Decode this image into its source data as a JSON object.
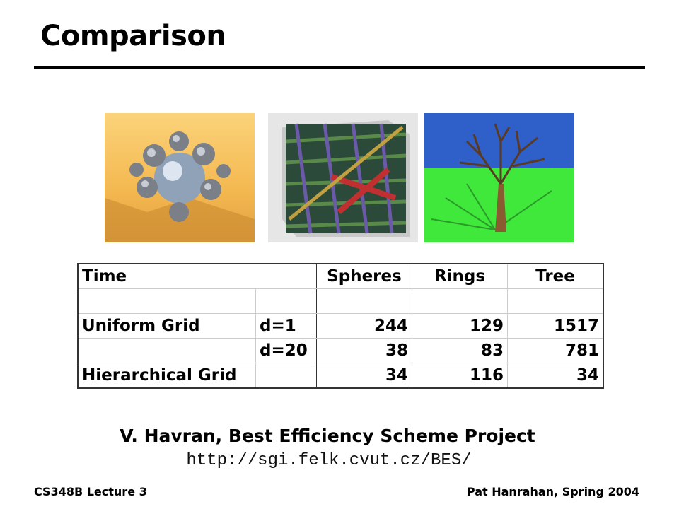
{
  "slide": {
    "title": "Comparison"
  },
  "images": [
    {
      "alt": "spheres-scene"
    },
    {
      "alt": "rings-scene"
    },
    {
      "alt": "tree-scene"
    }
  ],
  "table": {
    "headers": [
      "Time",
      "",
      "Spheres",
      "Rings",
      "Tree"
    ],
    "rows": [
      [
        "",
        "",
        "",
        "",
        ""
      ],
      [
        "Uniform Grid",
        "d=1",
        "244",
        "129",
        "1517"
      ],
      [
        "",
        "d=20",
        "38",
        "83",
        "781"
      ],
      [
        "Hierarchical Grid",
        "",
        "34",
        "116",
        "34"
      ]
    ]
  },
  "credit": "V. Havran, Best Efficiency Scheme Project",
  "url": "http://sgi.felk.cvut.cz/BES/",
  "footer": {
    "left": "CS348B Lecture 3",
    "right": "Pat Hanrahan, Spring 2004"
  }
}
